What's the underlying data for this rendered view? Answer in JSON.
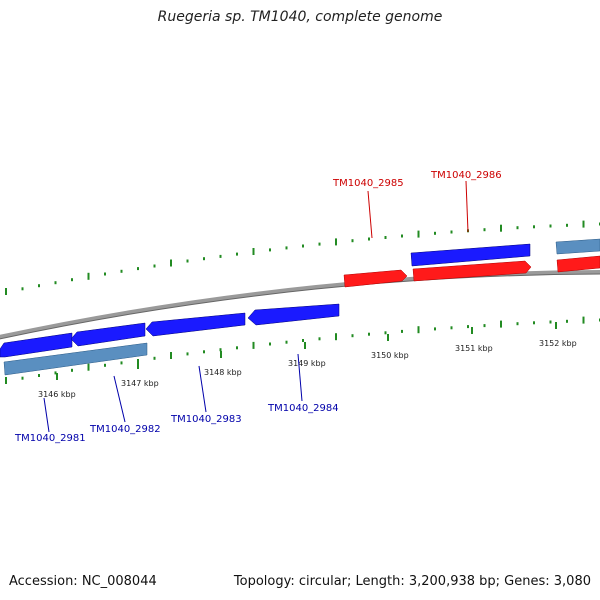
{
  "title": "Ruegeria sp. TM1040, complete genome",
  "footer": {
    "accession": "Accession: NC_008044",
    "stats": "Topology: circular; Length: 3,200,938 bp; Genes: 3,080"
  },
  "colors": {
    "forward_gene": "#ff0000",
    "reverse_gene": "#0000ff",
    "backbone": "#888888",
    "ticks": "#228b22",
    "forward_label": "#cc0000",
    "reverse_label": "#0000aa",
    "rna_gene": "#4682b4"
  },
  "scale_ticks": [
    {
      "label": "3146 kbp"
    },
    {
      "label": "3147 kbp"
    },
    {
      "label": "3148 kbp"
    },
    {
      "label": "3149 kbp"
    },
    {
      "label": "3150 kbp"
    },
    {
      "label": "3151 kbp"
    },
    {
      "label": "3152 kbp"
    }
  ],
  "gene_labels": {
    "forward": [
      {
        "name": "TM1040_2985"
      },
      {
        "name": "TM1040_2986"
      }
    ],
    "reverse": [
      {
        "name": "TM1040_2981"
      },
      {
        "name": "TM1040_2982"
      },
      {
        "name": "TM1040_2983"
      },
      {
        "name": "TM1040_2984"
      }
    ]
  }
}
